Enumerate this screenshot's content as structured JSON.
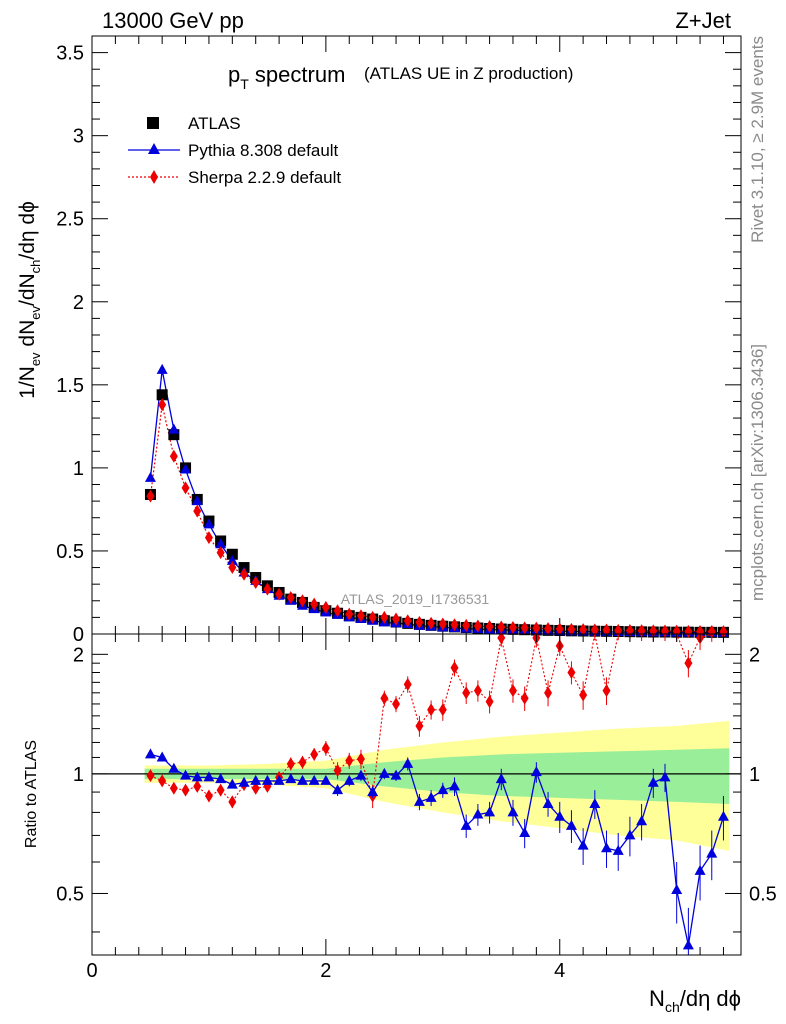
{
  "header": {
    "energy_label": "13000 GeV pp",
    "process_label": "Z+Jet"
  },
  "side_labels": {
    "rivet": "Rivet 3.1.10, ≥ 2.9M events",
    "mcplots": "mcplots.cern.ch [arXiv:1306.3436]"
  },
  "chart_data": [
    {
      "type": "scatter",
      "panel": "main",
      "title_main": "p",
      "title_sub": "T",
      "title_rest": " spectrum",
      "title_note": "(ATLAS UE in Z production)",
      "watermark": "ATLAS_2019_I1736531",
      "ylabel": {
        "a": "1/N",
        "a_sub": "ev",
        "b": " dN",
        "b_sub": "ev",
        "c": "/dN",
        "c_sub": "ch",
        "d": "/dη dϕ"
      },
      "xlim": [
        0,
        5.55
      ],
      "ylim": [
        0,
        3.6
      ],
      "y_ticks": [
        "0",
        "0.5",
        "1",
        "1.5",
        "2",
        "2.5",
        "3",
        "3.5"
      ],
      "legend_placement": "top-left",
      "colors": {
        "data": "#000000",
        "pythia": "#0000dd",
        "sherpa": "#ee0000"
      },
      "x": [
        0.5,
        0.6,
        0.7,
        0.8,
        0.9,
        1.0,
        1.1,
        1.2,
        1.3,
        1.4,
        1.5,
        1.6,
        1.7,
        1.8,
        1.9,
        2.0,
        2.1,
        2.2,
        2.3,
        2.4,
        2.5,
        2.6,
        2.7,
        2.8,
        2.9,
        3.0,
        3.1,
        3.2,
        3.3,
        3.4,
        3.5,
        3.6,
        3.7,
        3.8,
        3.9,
        4.0,
        4.1,
        4.2,
        4.3,
        4.4,
        4.5,
        4.6,
        4.7,
        4.8,
        4.9,
        5.0,
        5.1,
        5.2,
        5.3,
        5.4
      ],
      "series": [
        {
          "name": "ATLAS",
          "marker": "square",
          "values": [
            0.84,
            1.44,
            1.2,
            1.0,
            0.81,
            0.68,
            0.56,
            0.48,
            0.4,
            0.34,
            0.29,
            0.25,
            0.21,
            0.19,
            0.16,
            0.14,
            0.125,
            0.11,
            0.1,
            0.09,
            0.08,
            0.072,
            0.064,
            0.058,
            0.052,
            0.047,
            0.043,
            0.039,
            0.036,
            0.033,
            0.03,
            0.028,
            0.026,
            0.024,
            0.022,
            0.021,
            0.019,
            0.018,
            0.017,
            0.016,
            0.015,
            0.014,
            0.013,
            0.012,
            0.012,
            0.011,
            0.011,
            0.01,
            0.01,
            0.01
          ]
        },
        {
          "name": "Pythia 8.308 default",
          "marker": "triangle",
          "values": [
            0.94,
            1.59,
            1.23,
            0.99,
            0.8,
            0.66,
            0.54,
            0.44,
            0.37,
            0.32,
            0.27,
            0.23,
            0.2,
            0.17,
            0.15,
            0.13,
            0.115,
            0.1,
            0.09,
            0.08,
            0.07,
            0.065,
            0.06,
            0.05,
            0.045,
            0.04,
            0.036,
            0.032,
            0.03,
            0.027,
            0.025,
            0.023,
            0.021,
            0.019,
            0.018,
            0.017,
            0.016,
            0.015,
            0.014,
            0.013,
            0.012,
            0.011,
            0.011,
            0.01,
            0.01,
            0.009,
            0.009,
            0.008,
            0.008,
            0.008
          ]
        },
        {
          "name": "Sherpa 2.2.9 default",
          "marker": "diamond",
          "values": [
            0.83,
            1.38,
            1.07,
            0.88,
            0.74,
            0.58,
            0.49,
            0.4,
            0.36,
            0.31,
            0.27,
            0.24,
            0.22,
            0.2,
            0.18,
            0.16,
            0.14,
            0.12,
            0.11,
            0.1,
            0.1,
            0.09,
            0.08,
            0.07,
            0.065,
            0.06,
            0.056,
            0.052,
            0.048,
            0.045,
            0.042,
            0.039,
            0.037,
            0.035,
            0.032,
            0.03,
            0.028,
            0.026,
            0.025,
            0.024,
            0.022,
            0.021,
            0.02,
            0.019,
            0.018,
            0.017,
            0.016,
            0.015,
            0.015,
            0.014
          ]
        }
      ]
    },
    {
      "type": "scatter",
      "panel": "ratio",
      "ylabel": "Ratio to ATLAS",
      "xlabel": {
        "a": "N",
        "a_sub": "ch",
        "b": "/dη dϕ"
      },
      "xlim": [
        0,
        5.55
      ],
      "ylim": [
        0.35,
        2.25
      ],
      "x_ticks": [
        "0",
        "2",
        "4"
      ],
      "y_ticks": [
        "0.5",
        "1",
        "2"
      ],
      "colors": {
        "band_inner": "#99ee99",
        "band_outer": "#ffff99",
        "reference": "#000000"
      },
      "band_x": [
        0.45,
        1.0,
        1.5,
        2.0,
        2.5,
        3.0,
        3.5,
        4.0,
        4.5,
        5.0,
        5.45
      ],
      "band_inner": [
        0.03,
        0.03,
        0.03,
        0.03,
        0.07,
        0.1,
        0.12,
        0.13,
        0.14,
        0.15,
        0.16
      ],
      "band_outer": [
        0.05,
        0.05,
        0.06,
        0.08,
        0.15,
        0.2,
        0.24,
        0.27,
        0.3,
        0.32,
        0.36
      ],
      "reference_value": 1.0,
      "series": [
        {
          "name": "Pythia 8.308 default",
          "values": [
            1.12,
            1.1,
            1.03,
            0.99,
            0.98,
            0.98,
            0.97,
            0.94,
            0.95,
            0.96,
            0.96,
            0.96,
            0.97,
            0.96,
            0.96,
            0.96,
            0.91,
            0.96,
            0.99,
            0.9,
            1.0,
            0.99,
            1.06,
            0.85,
            0.87,
            0.91,
            0.93,
            0.74,
            0.79,
            0.8,
            0.97,
            0.8,
            0.71,
            1.01,
            0.84,
            0.78,
            0.74,
            0.66,
            0.84,
            0.65,
            0.64,
            0.7,
            0.76,
            0.95,
            0.98,
            0.51,
            0.37,
            0.57,
            0.63,
            0.78
          ],
          "errors": [
            0.02,
            0.02,
            0.02,
            0.02,
            0.02,
            0.02,
            0.02,
            0.02,
            0.02,
            0.02,
            0.02,
            0.02,
            0.02,
            0.02,
            0.02,
            0.02,
            0.03,
            0.03,
            0.03,
            0.03,
            0.03,
            0.03,
            0.04,
            0.04,
            0.04,
            0.04,
            0.05,
            0.05,
            0.05,
            0.05,
            0.06,
            0.06,
            0.06,
            0.06,
            0.06,
            0.07,
            0.07,
            0.07,
            0.07,
            0.07,
            0.07,
            0.08,
            0.08,
            0.08,
            0.08,
            0.09,
            0.09,
            0.09,
            0.09,
            0.1
          ]
        },
        {
          "name": "Sherpa 2.2.9 default",
          "values": [
            0.99,
            0.96,
            0.92,
            0.91,
            0.93,
            0.88,
            0.91,
            0.85,
            0.94,
            0.92,
            0.93,
            0.98,
            1.06,
            1.07,
            1.12,
            1.16,
            1.02,
            1.08,
            1.09,
            0.88,
            1.55,
            1.5,
            1.68,
            1.32,
            1.45,
            1.45,
            1.85,
            1.6,
            1.62,
            1.52,
            2.2,
            1.62,
            1.55,
            2.2,
            1.6,
            2.1,
            1.8,
            1.58,
            2.3,
            1.62,
            2.3,
            2.3,
            2.3,
            2.3,
            2.3,
            2.3,
            1.9,
            2.2,
            2.3,
            2.3
          ],
          "errors": [
            0.02,
            0.02,
            0.02,
            0.02,
            0.03,
            0.03,
            0.03,
            0.03,
            0.03,
            0.03,
            0.03,
            0.03,
            0.04,
            0.04,
            0.04,
            0.05,
            0.05,
            0.05,
            0.06,
            0.06,
            0.07,
            0.07,
            0.08,
            0.08,
            0.08,
            0.09,
            0.09,
            0.1,
            0.1,
            0.1,
            0.11,
            0.11,
            0.11,
            0.12,
            0.12,
            0.12,
            0.12,
            0.13,
            0.13,
            0.13,
            0.13,
            0.14,
            0.14,
            0.14,
            0.14,
            0.15,
            0.15,
            0.15,
            0.15,
            0.16
          ]
        }
      ]
    }
  ]
}
